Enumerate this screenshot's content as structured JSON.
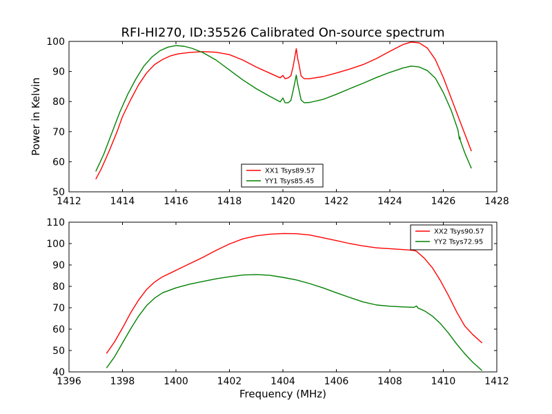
{
  "chart_data": [
    {
      "type": "line",
      "title": "RFI-HI270, ID:35526 Calibrated On-source spectrum",
      "xlabel": "",
      "ylabel": "Power in Kelvin",
      "xlim": [
        1412,
        1428
      ],
      "ylim": [
        50,
        100
      ],
      "xticks": [
        1412,
        1414,
        1416,
        1418,
        1420,
        1422,
        1424,
        1426,
        1428
      ],
      "yticks": [
        50,
        60,
        70,
        80,
        90,
        100
      ],
      "legend_position": "bottom-center",
      "series": [
        {
          "name": "XX1 Tsys89.57",
          "color": "#ff0000",
          "points": [
            [
              1413.0,
              54.2
            ],
            [
              1413.2,
              57.5
            ],
            [
              1413.5,
              63.5
            ],
            [
              1413.8,
              70
            ],
            [
              1414.0,
              75
            ],
            [
              1414.3,
              80.5
            ],
            [
              1414.6,
              85.5
            ],
            [
              1414.9,
              89.5
            ],
            [
              1415.2,
              92.3
            ],
            [
              1415.5,
              94
            ],
            [
              1415.8,
              95.2
            ],
            [
              1416.1,
              95.9
            ],
            [
              1416.5,
              96.3
            ],
            [
              1417.0,
              96.6
            ],
            [
              1417.5,
              96.4
            ],
            [
              1418.0,
              95.6
            ],
            [
              1418.5,
              93.8
            ],
            [
              1419.0,
              91.5
            ],
            [
              1419.5,
              89.5
            ],
            [
              1419.9,
              87.9
            ],
            [
              1420.0,
              88.7
            ],
            [
              1420.08,
              87.6
            ],
            [
              1420.2,
              87.9
            ],
            [
              1420.3,
              88.6
            ],
            [
              1420.38,
              91.5
            ],
            [
              1420.45,
              95
            ],
            [
              1420.5,
              97.6
            ],
            [
              1420.55,
              94.5
            ],
            [
              1420.6,
              92.5
            ],
            [
              1420.68,
              88.5
            ],
            [
              1420.8,
              87.6
            ],
            [
              1421.0,
              87.6
            ],
            [
              1421.5,
              88.3
            ],
            [
              1422.0,
              89.5
            ],
            [
              1422.5,
              90.8
            ],
            [
              1423.0,
              92.3
            ],
            [
              1423.5,
              94.3
            ],
            [
              1424.0,
              96.7
            ],
            [
              1424.5,
              99.0
            ],
            [
              1424.8,
              99.8
            ],
            [
              1425.1,
              99.5
            ],
            [
              1425.4,
              97.8
            ],
            [
              1425.7,
              94
            ],
            [
              1426.0,
              88
            ],
            [
              1426.3,
              81
            ],
            [
              1426.6,
              74
            ],
            [
              1426.9,
              67
            ],
            [
              1427.05,
              63.5
            ]
          ]
        },
        {
          "name": "YY1 Tsys85.45",
          "color": "#008000",
          "points": [
            [
              1413.0,
              56.8
            ],
            [
              1413.3,
              62.5
            ],
            [
              1413.6,
              69.5
            ],
            [
              1413.9,
              76.5
            ],
            [
              1414.2,
              82.5
            ],
            [
              1414.5,
              87.5
            ],
            [
              1414.8,
              91.8
            ],
            [
              1415.1,
              94.8
            ],
            [
              1415.4,
              96.9
            ],
            [
              1415.7,
              98.1
            ],
            [
              1416.0,
              98.6
            ],
            [
              1416.3,
              98.4
            ],
            [
              1416.6,
              97.7
            ],
            [
              1417.0,
              96.3
            ],
            [
              1417.5,
              93.8
            ],
            [
              1418.0,
              90.5
            ],
            [
              1418.5,
              87.2
            ],
            [
              1419.0,
              84.3
            ],
            [
              1419.5,
              81.8
            ],
            [
              1419.9,
              79.9
            ],
            [
              1420.0,
              81.2
            ],
            [
              1420.08,
              79.6
            ],
            [
              1420.2,
              79.6
            ],
            [
              1420.3,
              80.4
            ],
            [
              1420.38,
              83.5
            ],
            [
              1420.45,
              86.5
            ],
            [
              1420.5,
              88.8
            ],
            [
              1420.55,
              86
            ],
            [
              1420.6,
              84
            ],
            [
              1420.68,
              80.5
            ],
            [
              1420.8,
              79.6
            ],
            [
              1421.0,
              79.7
            ],
            [
              1421.5,
              80.7
            ],
            [
              1422.0,
              82.4
            ],
            [
              1422.5,
              84.3
            ],
            [
              1423.0,
              86.1
            ],
            [
              1423.5,
              88
            ],
            [
              1424.0,
              89.7
            ],
            [
              1424.5,
              91.2
            ],
            [
              1424.8,
              91.8
            ],
            [
              1425.1,
              91.5
            ],
            [
              1425.4,
              90.3
            ],
            [
              1425.7,
              87.8
            ],
            [
              1426.0,
              83
            ],
            [
              1426.3,
              77
            ],
            [
              1426.55,
              70.5
            ],
            [
              1426.6,
              67.5
            ],
            [
              1426.62,
              68.2
            ],
            [
              1426.64,
              67.0
            ],
            [
              1426.8,
              63
            ],
            [
              1427.05,
              57.8
            ]
          ]
        }
      ]
    },
    {
      "type": "line",
      "title": "",
      "xlabel": "Frequency (MHz)",
      "ylabel": "",
      "xlim": [
        1396,
        1412
      ],
      "ylim": [
        40,
        110
      ],
      "xticks": [
        1396,
        1398,
        1400,
        1402,
        1404,
        1406,
        1408,
        1410,
        1412
      ],
      "yticks": [
        40,
        50,
        60,
        70,
        80,
        90,
        100,
        110
      ],
      "legend_position": "top-right",
      "series": [
        {
          "name": "XX2 Tsys90.57",
          "color": "#ff0000",
          "points": [
            [
              1397.4,
              48.6
            ],
            [
              1397.7,
              54
            ],
            [
              1398.0,
              60.5
            ],
            [
              1398.3,
              67.5
            ],
            [
              1398.6,
              73.5
            ],
            [
              1398.9,
              78.5
            ],
            [
              1399.2,
              82
            ],
            [
              1399.5,
              84.5
            ],
            [
              1400.0,
              87.5
            ],
            [
              1400.5,
              90.5
            ],
            [
              1401.0,
              93.5
            ],
            [
              1401.5,
              96.8
            ],
            [
              1402.0,
              99.8
            ],
            [
              1402.5,
              102.2
            ],
            [
              1403.0,
              103.6
            ],
            [
              1403.5,
              104.4
            ],
            [
              1404.0,
              104.7
            ],
            [
              1404.5,
              104.6
            ],
            [
              1405.0,
              104
            ],
            [
              1405.5,
              102.7
            ],
            [
              1406.0,
              101.4
            ],
            [
              1406.5,
              100
            ],
            [
              1407.0,
              98.9
            ],
            [
              1407.5,
              98
            ],
            [
              1408.0,
              97.6
            ],
            [
              1408.5,
              97.2
            ],
            [
              1408.9,
              96.8
            ],
            [
              1409.0,
              96.4
            ],
            [
              1409.05,
              95.8
            ],
            [
              1409.3,
              93
            ],
            [
              1409.6,
              88.5
            ],
            [
              1409.9,
              82.5
            ],
            [
              1410.2,
              75.5
            ],
            [
              1410.5,
              68
            ],
            [
              1410.8,
              61.5
            ],
            [
              1411.1,
              57.5
            ],
            [
              1411.45,
              53.5
            ]
          ]
        },
        {
          "name": "YY2 Tsys72.95",
          "color": "#008000",
          "points": [
            [
              1397.4,
              41.8
            ],
            [
              1397.7,
              47
            ],
            [
              1398.0,
              53.5
            ],
            [
              1398.3,
              60
            ],
            [
              1398.6,
              66
            ],
            [
              1398.9,
              71
            ],
            [
              1399.2,
              74.5
            ],
            [
              1399.5,
              77
            ],
            [
              1400.0,
              79.3
            ],
            [
              1400.5,
              81
            ],
            [
              1401.0,
              82.3
            ],
            [
              1401.5,
              83.5
            ],
            [
              1402.0,
              84.5
            ],
            [
              1402.5,
              85.3
            ],
            [
              1403.0,
              85.5
            ],
            [
              1403.5,
              85.2
            ],
            [
              1404.0,
              84.2
            ],
            [
              1404.5,
              83
            ],
            [
              1405.0,
              81.3
            ],
            [
              1405.5,
              79.3
            ],
            [
              1406.0,
              77
            ],
            [
              1406.5,
              74.8
            ],
            [
              1407.0,
              72.7
            ],
            [
              1407.5,
              71.3
            ],
            [
              1408.0,
              70.7
            ],
            [
              1408.5,
              70.4
            ],
            [
              1408.9,
              70.2
            ],
            [
              1409.0,
              70.8
            ],
            [
              1409.05,
              69.9
            ],
            [
              1409.3,
              68.5
            ],
            [
              1409.6,
              66
            ],
            [
              1409.9,
              62.5
            ],
            [
              1410.2,
              58
            ],
            [
              1410.5,
              53
            ],
            [
              1410.8,
              48.5
            ],
            [
              1411.1,
              44.5
            ],
            [
              1411.45,
              40.6
            ]
          ]
        }
      ]
    }
  ]
}
